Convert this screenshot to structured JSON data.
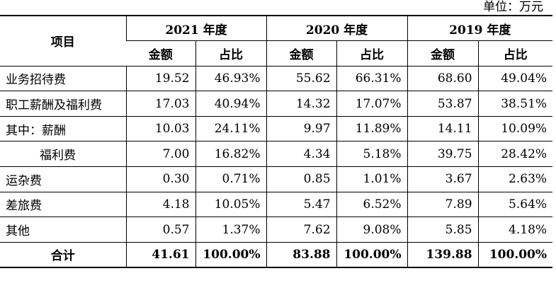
{
  "unit_label": "单位：万元",
  "header": {
    "item": "项目",
    "years": [
      "2021 年度",
      "2020 年度",
      "2019 年度"
    ],
    "amount": "金额",
    "ratio": "占比"
  },
  "rows": [
    {
      "label": "业务招待费",
      "v": [
        "19.52",
        "46.93%",
        "55.62",
        "66.31%",
        "68.60",
        "49.04%"
      ]
    },
    {
      "label": "职工薪酬及福利费",
      "v": [
        "17.03",
        "40.94%",
        "14.32",
        "17.07%",
        "53.87",
        "38.51%"
      ]
    },
    {
      "label": "其中：薪酬",
      "v": [
        "10.03",
        "24.11%",
        "9.97",
        "11.89%",
        "14.11",
        "10.09%"
      ]
    },
    {
      "label": "福利费",
      "v": [
        "7.00",
        "16.82%",
        "4.34",
        "5.18%",
        "39.75",
        "28.42%"
      ]
    },
    {
      "label": "运杂费",
      "v": [
        "0.30",
        "0.71%",
        "0.85",
        "1.01%",
        "3.67",
        "2.63%"
      ]
    },
    {
      "label": "差旅费",
      "v": [
        "4.18",
        "10.05%",
        "5.47",
        "6.52%",
        "7.89",
        "5.64%"
      ]
    },
    {
      "label": "其他",
      "v": [
        "0.57",
        "1.37%",
        "7.62",
        "9.08%",
        "5.85",
        "4.18%"
      ]
    }
  ],
  "total": {
    "label": "合计",
    "v": [
      "41.61",
      "100.00%",
      "83.88",
      "100.00%",
      "139.88",
      "100.00%"
    ]
  }
}
